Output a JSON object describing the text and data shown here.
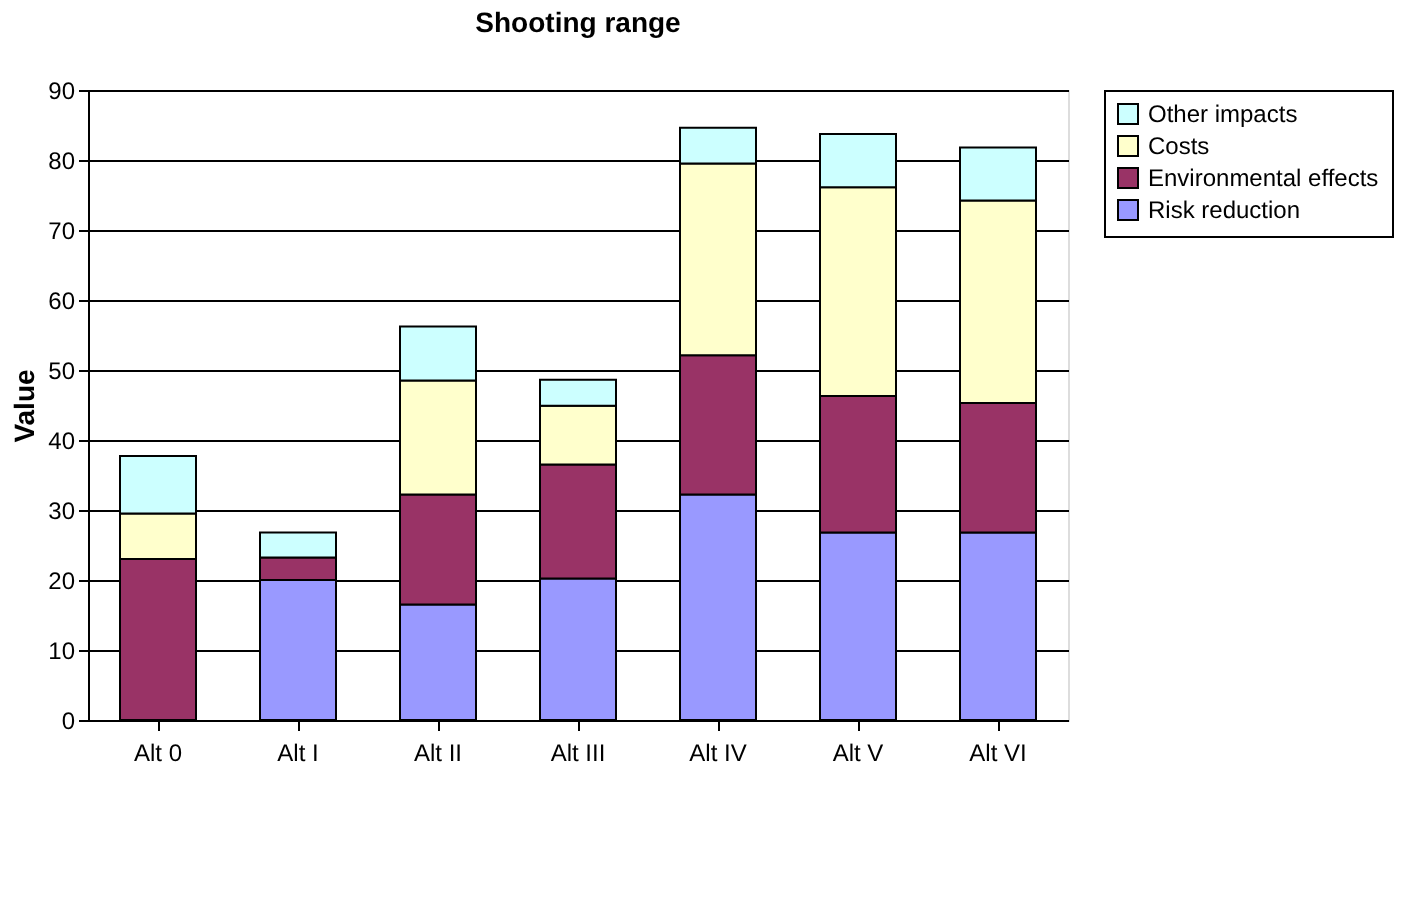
{
  "chart_data": {
    "type": "bar",
    "title": "Shooting range",
    "ylabel": "Value",
    "stacked": true,
    "categories": [
      "Alt 0",
      "Alt I",
      "Alt II",
      "Alt III",
      "Alt IV",
      "Alt V",
      "Alt VI"
    ],
    "series": [
      {
        "name": "Risk reduction",
        "color": "#9999ff",
        "values": [
          0,
          20,
          16.5,
          20.2,
          32.2,
          26.8,
          26.8
        ]
      },
      {
        "name": "Environmental effects",
        "color": "#993366",
        "values": [
          23,
          3.2,
          15.7,
          16.3,
          19.9,
          19.5,
          18.5
        ]
      },
      {
        "name": "Costs",
        "color": "#ffffcc",
        "values": [
          6.5,
          0,
          16.3,
          8.4,
          27.4,
          29.8,
          28.9
        ]
      },
      {
        "name": "Other impacts",
        "color": "#ccffff",
        "values": [
          8.2,
          3.6,
          7.7,
          3.7,
          5.1,
          7.6,
          7.6
        ]
      }
    ],
    "ylim": [
      0,
      90
    ],
    "yticks": [
      0,
      10,
      20,
      30,
      40,
      50,
      60,
      70,
      80,
      90
    ],
    "grid": "y",
    "legend": "right"
  }
}
